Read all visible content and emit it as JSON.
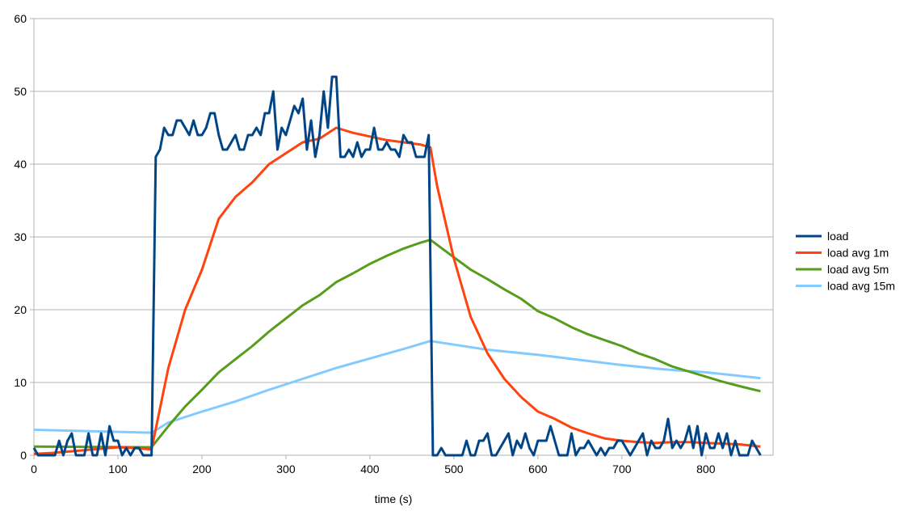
{
  "chart_data": {
    "type": "line",
    "title": "",
    "xlabel": "time (s)",
    "ylabel": "",
    "xlim": [
      0,
      880
    ],
    "ylim": [
      0,
      60
    ],
    "xticks": [
      0,
      100,
      200,
      300,
      400,
      500,
      600,
      700,
      800
    ],
    "yticks": [
      0,
      10,
      20,
      30,
      40,
      50,
      60
    ],
    "grid": "horizontal",
    "legend_position": "right",
    "series": [
      {
        "name": "load",
        "color": "#004586",
        "points": [
          [
            0,
            1
          ],
          [
            5,
            0
          ],
          [
            10,
            0
          ],
          [
            15,
            0
          ],
          [
            20,
            0
          ],
          [
            25,
            0
          ],
          [
            30,
            2
          ],
          [
            35,
            0
          ],
          [
            40,
            2
          ],
          [
            45,
            3
          ],
          [
            50,
            0
          ],
          [
            55,
            0
          ],
          [
            60,
            0
          ],
          [
            65,
            3
          ],
          [
            70,
            0
          ],
          [
            75,
            0
          ],
          [
            80,
            3
          ],
          [
            85,
            0
          ],
          [
            90,
            4
          ],
          [
            95,
            2
          ],
          [
            100,
            2
          ],
          [
            105,
            0
          ],
          [
            110,
            1
          ],
          [
            115,
            0
          ],
          [
            120,
            1
          ],
          [
            125,
            1
          ],
          [
            130,
            0
          ],
          [
            135,
            0
          ],
          [
            140,
            0
          ],
          [
            145,
            41
          ],
          [
            150,
            42
          ],
          [
            155,
            45
          ],
          [
            160,
            44
          ],
          [
            165,
            44
          ],
          [
            170,
            46
          ],
          [
            175,
            46
          ],
          [
            180,
            45
          ],
          [
            185,
            44
          ],
          [
            190,
            46
          ],
          [
            195,
            44
          ],
          [
            200,
            44
          ],
          [
            205,
            45
          ],
          [
            210,
            47
          ],
          [
            215,
            47
          ],
          [
            220,
            44
          ],
          [
            225,
            42
          ],
          [
            230,
            42
          ],
          [
            235,
            43
          ],
          [
            240,
            44
          ],
          [
            245,
            42
          ],
          [
            250,
            42
          ],
          [
            255,
            44
          ],
          [
            260,
            44
          ],
          [
            265,
            45
          ],
          [
            270,
            44
          ],
          [
            275,
            47
          ],
          [
            280,
            47
          ],
          [
            285,
            50
          ],
          [
            290,
            42
          ],
          [
            295,
            45
          ],
          [
            300,
            44
          ],
          [
            305,
            46
          ],
          [
            310,
            48
          ],
          [
            315,
            47
          ],
          [
            320,
            49
          ],
          [
            325,
            42
          ],
          [
            330,
            46
          ],
          [
            335,
            41
          ],
          [
            340,
            44
          ],
          [
            345,
            50
          ],
          [
            350,
            45
          ],
          [
            355,
            52
          ],
          [
            360,
            52
          ],
          [
            365,
            41
          ],
          [
            370,
            41
          ],
          [
            375,
            42
          ],
          [
            380,
            41
          ],
          [
            385,
            43
          ],
          [
            390,
            41
          ],
          [
            395,
            42
          ],
          [
            400,
            42
          ],
          [
            405,
            45
          ],
          [
            410,
            42
          ],
          [
            415,
            42
          ],
          [
            420,
            43
          ],
          [
            425,
            42
          ],
          [
            430,
            42
          ],
          [
            435,
            41
          ],
          [
            440,
            44
          ],
          [
            445,
            43
          ],
          [
            450,
            43
          ],
          [
            455,
            41
          ],
          [
            460,
            41
          ],
          [
            465,
            41
          ],
          [
            470,
            44
          ],
          [
            475,
            0
          ],
          [
            480,
            0
          ],
          [
            485,
            1
          ],
          [
            490,
            0
          ],
          [
            495,
            0
          ],
          [
            500,
            0
          ],
          [
            505,
            0
          ],
          [
            510,
            0
          ],
          [
            515,
            2
          ],
          [
            520,
            0
          ],
          [
            525,
            0
          ],
          [
            530,
            2
          ],
          [
            535,
            2
          ],
          [
            540,
            3
          ],
          [
            545,
            0
          ],
          [
            550,
            0
          ],
          [
            555,
            1
          ],
          [
            560,
            2
          ],
          [
            565,
            3
          ],
          [
            570,
            0
          ],
          [
            575,
            2
          ],
          [
            580,
            1
          ],
          [
            585,
            3
          ],
          [
            590,
            1
          ],
          [
            595,
            0
          ],
          [
            600,
            2
          ],
          [
            605,
            2
          ],
          [
            610,
            2
          ],
          [
            615,
            4
          ],
          [
            620,
            2
          ],
          [
            625,
            0
          ],
          [
            630,
            0
          ],
          [
            635,
            0
          ],
          [
            640,
            3
          ],
          [
            645,
            0
          ],
          [
            650,
            1
          ],
          [
            655,
            1
          ],
          [
            660,
            2
          ],
          [
            665,
            1
          ],
          [
            670,
            0
          ],
          [
            675,
            1
          ],
          [
            680,
            0
          ],
          [
            685,
            1
          ],
          [
            690,
            1
          ],
          [
            695,
            2
          ],
          [
            700,
            2
          ],
          [
            705,
            1
          ],
          [
            710,
            0
          ],
          [
            715,
            1
          ],
          [
            720,
            2
          ],
          [
            725,
            3
          ],
          [
            730,
            0
          ],
          [
            735,
            2
          ],
          [
            740,
            1
          ],
          [
            745,
            1
          ],
          [
            750,
            2
          ],
          [
            755,
            5
          ],
          [
            760,
            1
          ],
          [
            765,
            2
          ],
          [
            770,
            1
          ],
          [
            775,
            2
          ],
          [
            780,
            4
          ],
          [
            785,
            1
          ],
          [
            790,
            4
          ],
          [
            795,
            0
          ],
          [
            800,
            3
          ],
          [
            805,
            1
          ],
          [
            810,
            1
          ],
          [
            815,
            3
          ],
          [
            820,
            1
          ],
          [
            825,
            3
          ],
          [
            830,
            0
          ],
          [
            835,
            2
          ],
          [
            840,
            0
          ],
          [
            845,
            0
          ],
          [
            850,
            0
          ],
          [
            855,
            2
          ],
          [
            860,
            1
          ],
          [
            865,
            0
          ]
        ]
      },
      {
        "name": "load avg 1m",
        "color": "#ff420e",
        "points": [
          [
            0,
            0.2
          ],
          [
            20,
            0.3
          ],
          [
            40,
            0.5
          ],
          [
            60,
            0.7
          ],
          [
            80,
            0.9
          ],
          [
            100,
            1.1
          ],
          [
            120,
            1.0
          ],
          [
            140,
            0.8
          ],
          [
            160,
            12
          ],
          [
            180,
            20
          ],
          [
            200,
            25.5
          ],
          [
            220,
            32.5
          ],
          [
            240,
            35.5
          ],
          [
            260,
            37.5
          ],
          [
            280,
            40
          ],
          [
            300,
            41.5
          ],
          [
            320,
            43
          ],
          [
            340,
            43.5
          ],
          [
            360,
            45
          ],
          [
            380,
            44.3
          ],
          [
            400,
            43.8
          ],
          [
            420,
            43.3
          ],
          [
            440,
            43
          ],
          [
            460,
            42.7
          ],
          [
            472,
            42.3
          ],
          [
            480,
            37
          ],
          [
            500,
            27
          ],
          [
            520,
            19
          ],
          [
            540,
            14
          ],
          [
            560,
            10.5
          ],
          [
            580,
            8
          ],
          [
            600,
            6
          ],
          [
            620,
            5
          ],
          [
            640,
            3.8
          ],
          [
            660,
            3
          ],
          [
            680,
            2.3
          ],
          [
            700,
            2
          ],
          [
            720,
            1.8
          ],
          [
            740,
            1.7
          ],
          [
            760,
            1.8
          ],
          [
            780,
            1.8
          ],
          [
            800,
            1.7
          ],
          [
            820,
            1.6
          ],
          [
            840,
            1.5
          ],
          [
            865,
            1.2
          ]
        ]
      },
      {
        "name": "load avg 5m",
        "color": "#579d1c",
        "points": [
          [
            0,
            1.2
          ],
          [
            140,
            1.1
          ],
          [
            160,
            4
          ],
          [
            180,
            6.7
          ],
          [
            200,
            9
          ],
          [
            220,
            11.4
          ],
          [
            240,
            13.2
          ],
          [
            260,
            15
          ],
          [
            280,
            17
          ],
          [
            300,
            18.8
          ],
          [
            320,
            20.6
          ],
          [
            340,
            22
          ],
          [
            360,
            23.8
          ],
          [
            380,
            25
          ],
          [
            400,
            26.3
          ],
          [
            420,
            27.4
          ],
          [
            440,
            28.4
          ],
          [
            460,
            29.2
          ],
          [
            472,
            29.6
          ],
          [
            500,
            27.2
          ],
          [
            520,
            25.5
          ],
          [
            540,
            24.2
          ],
          [
            560,
            22.8
          ],
          [
            580,
            21.5
          ],
          [
            600,
            19.8
          ],
          [
            620,
            18.8
          ],
          [
            640,
            17.6
          ],
          [
            660,
            16.6
          ],
          [
            680,
            15.8
          ],
          [
            700,
            15
          ],
          [
            720,
            14
          ],
          [
            740,
            13.2
          ],
          [
            760,
            12.2
          ],
          [
            780,
            11.5
          ],
          [
            800,
            10.8
          ],
          [
            820,
            10.1
          ],
          [
            840,
            9.5
          ],
          [
            865,
            8.8
          ]
        ]
      },
      {
        "name": "load avg 15m",
        "color": "#83caff",
        "points": [
          [
            0,
            3.5
          ],
          [
            140,
            3.1
          ],
          [
            160,
            4.5
          ],
          [
            200,
            6
          ],
          [
            240,
            7.4
          ],
          [
            280,
            9
          ],
          [
            320,
            10.5
          ],
          [
            360,
            12
          ],
          [
            400,
            13.3
          ],
          [
            440,
            14.6
          ],
          [
            472,
            15.7
          ],
          [
            500,
            15.2
          ],
          [
            540,
            14.5
          ],
          [
            600,
            13.8
          ],
          [
            650,
            13.1
          ],
          [
            700,
            12.4
          ],
          [
            750,
            11.8
          ],
          [
            800,
            11.4
          ],
          [
            865,
            10.6
          ]
        ]
      }
    ]
  }
}
